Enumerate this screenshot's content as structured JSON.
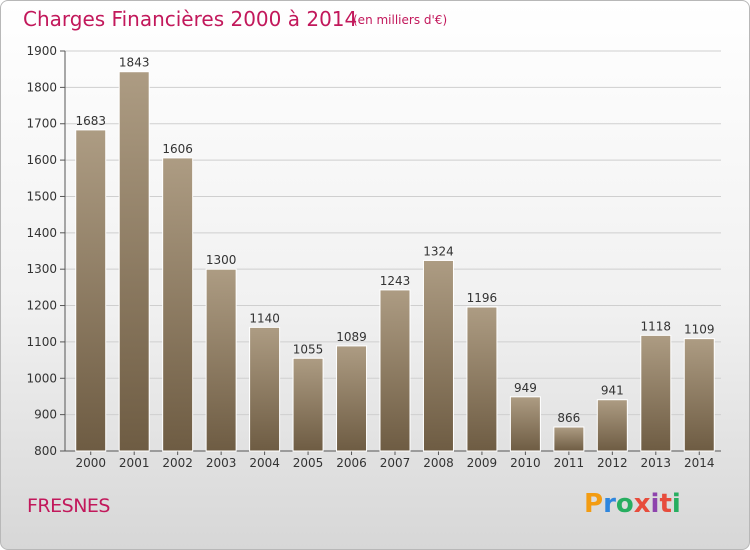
{
  "header": {
    "title": "Charges Financières 2000 à 2014",
    "subtitle": "(en milliers d'€)"
  },
  "footer": {
    "city": "FRESNES",
    "logo_text": "Proxiti"
  },
  "colors": {
    "title": "#c2185b",
    "bar_top": "#ad9c83",
    "bar_bottom": "#6e5c43",
    "grid": "#cfcfcf"
  },
  "chart_data": {
    "type": "bar",
    "title": "Charges Financières 2000 à 2014",
    "subtitle": "(en milliers d'€)",
    "categories": [
      "2000",
      "2001",
      "2002",
      "2003",
      "2004",
      "2005",
      "2006",
      "2007",
      "2008",
      "2009",
      "2010",
      "2011",
      "2012",
      "2013",
      "2014"
    ],
    "values": [
      1683,
      1843,
      1606,
      1300,
      1140,
      1055,
      1089,
      1243,
      1324,
      1196,
      949,
      866,
      941,
      1118,
      1109
    ],
    "ylim": [
      800,
      1900
    ],
    "yticks": [
      800,
      900,
      1000,
      1100,
      1200,
      1300,
      1400,
      1500,
      1600,
      1700,
      1800,
      1900
    ],
    "grid": true,
    "data_labels": true
  }
}
